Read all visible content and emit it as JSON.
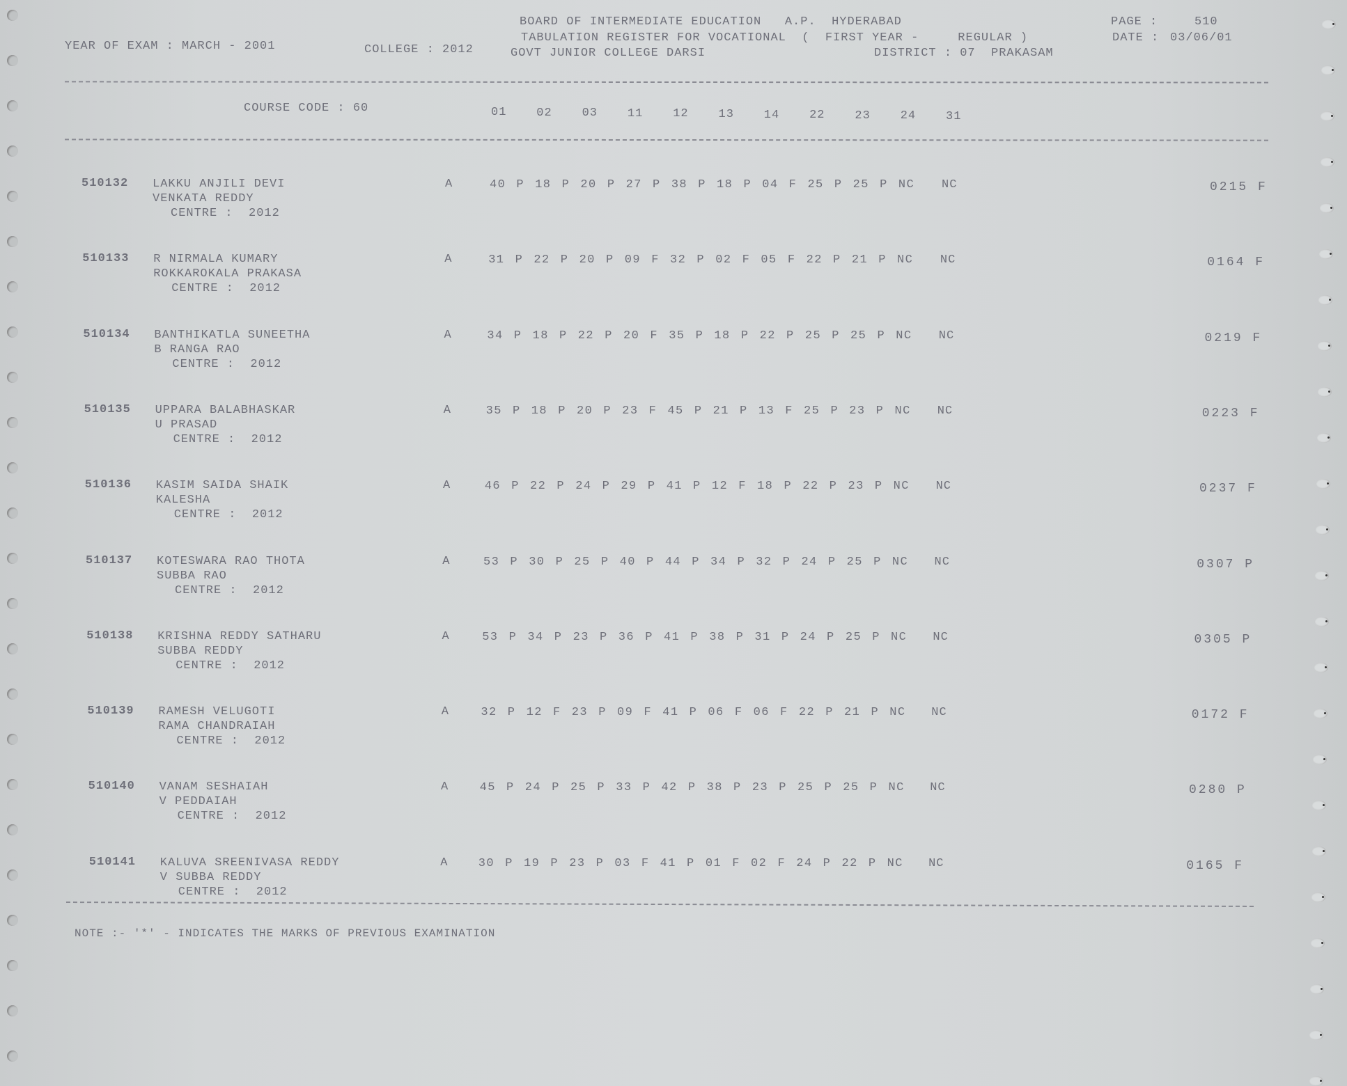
{
  "header": {
    "board": "BOARD OF INTERMEDIATE EDUCATION   A.P.  HYDERABAD",
    "register": "TABULATION REGISTER FOR VOCATIONAL  (  FIRST YEAR -     REGULAR )",
    "college_name": "GOVT JUNIOR COLLEGE DARSI",
    "district": "DISTRICT : 07  PRAKASAM",
    "page_label": "PAGE :",
    "page_number": "510",
    "date_label": "DATE :",
    "date": "03/06/01",
    "year_of_exam": "YEAR OF EXAM : MARCH - 2001",
    "college": "COLLEGE : 2012"
  },
  "columns": {
    "course_code": "COURSE CODE : 60",
    "codes": [
      "01",
      "02",
      "03",
      "11",
      "12",
      "13",
      "14",
      "22",
      "23",
      "24",
      "31"
    ]
  },
  "rows": [
    {
      "id": "510132",
      "name": "LAKKU ANJILI DEVI",
      "parent": "VENKATA REDDY",
      "centre": "CENTRE :  2012",
      "grade": "A",
      "marks": "40 P 18 P 20 P 27 P 38 P 18 P 04 F 25 P 25 P NC",
      "last": "NC",
      "total": "0215 F"
    },
    {
      "id": "510133",
      "name": "R NIRMALA KUMARY",
      "parent": "ROKKAROKALA PRAKASA",
      "centre": "CENTRE :  2012",
      "grade": "A",
      "marks": "31 P 22 P 20 P 09 F 32 P 02 F 05 F 22 P 21 P NC",
      "last": "NC",
      "total": "0164 F"
    },
    {
      "id": "510134",
      "name": "BANTHIKATLA SUNEETHA",
      "parent": "B RANGA RAO",
      "centre": "CENTRE :  2012",
      "grade": "A",
      "marks": "34 P 18 P 22 P 20 F 35 P 18 P 22 P 25 P 25 P NC",
      "last": "NC",
      "total": "0219 F"
    },
    {
      "id": "510135",
      "name": "UPPARA BALABHASKAR",
      "parent": "U PRASAD",
      "centre": "CENTRE :  2012",
      "grade": "A",
      "marks": "35 P 18 P 20 P 23 F 45 P 21 P 13 F 25 P 23 P NC",
      "last": "NC",
      "total": "0223 F"
    },
    {
      "id": "510136",
      "name": "KASIM SAIDA SHAIK",
      "parent": "KALESHA",
      "centre": "CENTRE :  2012",
      "grade": "A",
      "marks": "46 P 22 P 24 P 29 P 41 P 12 F 18 P 22 P 23 P NC",
      "last": "NC",
      "total": "0237 F"
    },
    {
      "id": "510137",
      "name": "KOTESWARA RAO THOTA",
      "parent": "SUBBA RAO",
      "centre": "CENTRE :  2012",
      "grade": "A",
      "marks": "53 P 30 P 25 P 40 P 44 P 34 P 32 P 24 P 25 P NC",
      "last": "NC",
      "total": "0307 P"
    },
    {
      "id": "510138",
      "name": "KRISHNA REDDY SATHARU",
      "parent": "SUBBA REDDY",
      "centre": "CENTRE :  2012",
      "grade": "A",
      "marks": "53 P 34 P 23 P 36 P 41 P 38 P 31 P 24 P 25 P NC",
      "last": "NC",
      "total": "0305 P"
    },
    {
      "id": "510139",
      "name": "RAMESH VELUGOTI",
      "parent": "RAMA CHANDRAIAH",
      "centre": "CENTRE :  2012",
      "grade": "A",
      "marks": "32 P 12 F 23 P 09 F 41 P 06 F 06 F 22 P 21 P NC",
      "last": "NC",
      "total": "0172 F"
    },
    {
      "id": "510140",
      "name": "VANAM SESHAIAH",
      "parent": "V PEDDAIAH",
      "centre": "CENTRE :  2012",
      "grade": "A",
      "marks": "45 P 24 P 25 P 33 P 42 P 38 P 23 P 25 P 25 P NC",
      "last": "NC",
      "total": "0280 P"
    },
    {
      "id": "510141",
      "name": "KALUVA SREENIVASA REDDY",
      "parent": "V SUBBA REDDY",
      "centre": "CENTRE :  2012",
      "grade": "A",
      "marks": "30 P 19 P 23 P 03 F 41 P 01 F 02 F 24 P 22 P NC",
      "last": "NC",
      "total": "0165 F"
    }
  ],
  "note": "NOTE :- '*' - INDICATES THE MARKS OF PREVIOUS EXAMINATION"
}
